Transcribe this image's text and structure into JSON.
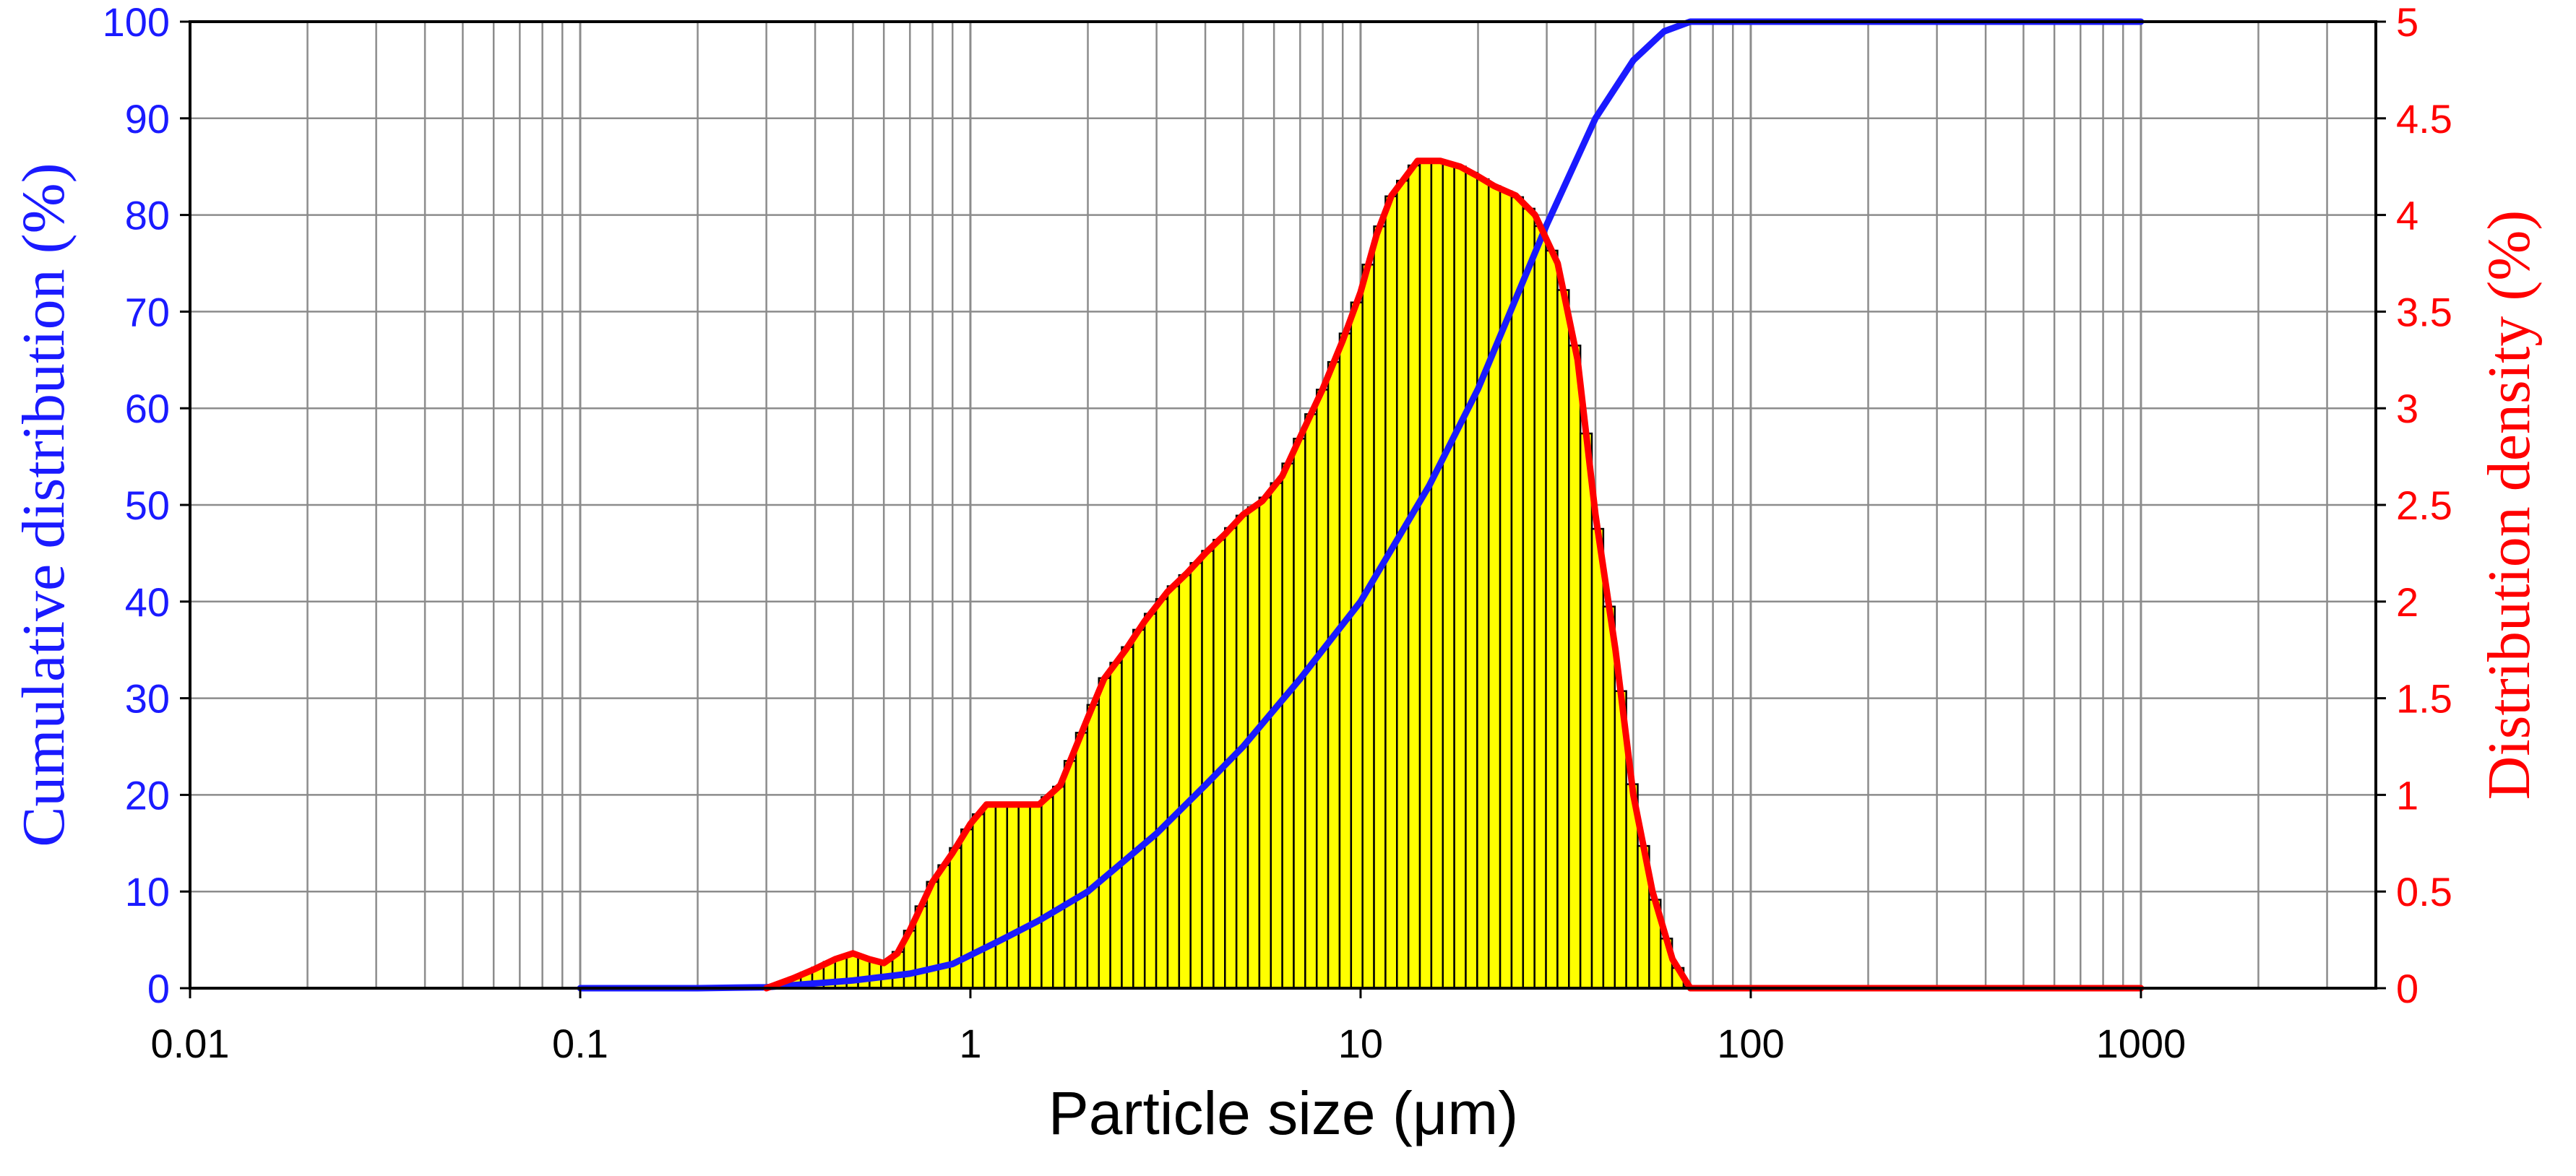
{
  "chart_data": {
    "type": "bar",
    "title": "",
    "xlabel": "Particle size (μm)",
    "xscale": "log",
    "xlim": [
      0.01,
      4000
    ],
    "xticks": [
      0.01,
      0.1,
      1,
      10,
      100,
      1000
    ],
    "xtick_labels": [
      "0.01",
      "0.1",
      "1",
      "10",
      "100",
      "1000"
    ],
    "y_left": {
      "label": "Cumulative distribution (%)",
      "ylim": [
        0,
        100
      ],
      "ticks": [
        0,
        10,
        20,
        30,
        40,
        50,
        60,
        70,
        80,
        90,
        100
      ],
      "tick_labels": [
        "0",
        "10",
        "20",
        "30",
        "40",
        "50",
        "60",
        "70",
        "80",
        "90",
        "100"
      ],
      "color": "#1a1aff"
    },
    "y_right": {
      "label": "Distribution density (%)",
      "ylim": [
        0,
        5
      ],
      "ticks": [
        0,
        0.5,
        1,
        1.5,
        2,
        2.5,
        3,
        3.5,
        4,
        4.5,
        5
      ],
      "tick_labels": [
        "0",
        "0.5",
        "1",
        "1.5",
        "2",
        "2.5",
        "3",
        "3.5",
        "4",
        "4.5",
        "5"
      ],
      "color": "#ff0000"
    },
    "grid": true,
    "series": [
      {
        "name": "Cumulative distribution",
        "type": "line",
        "axis": "left",
        "color": "#1a1aff",
        "x": [
          0.1,
          0.2,
          0.3,
          0.5,
          0.7,
          0.9,
          1.2,
          1.5,
          2,
          3,
          4,
          5,
          7,
          10,
          15,
          20,
          30,
          40,
          50,
          60,
          70,
          100,
          1000
        ],
        "y": [
          0,
          0,
          0.1,
          0.8,
          1.5,
          2.5,
          5,
          7,
          10,
          16,
          21,
          25,
          32,
          40,
          52,
          62,
          79,
          90,
          96,
          99,
          100,
          100,
          100
        ]
      },
      {
        "name": "Distribution density",
        "type": "line",
        "axis": "right",
        "color": "#ff0000",
        "x": [
          0.3,
          0.35,
          0.4,
          0.45,
          0.5,
          0.55,
          0.6,
          0.65,
          0.7,
          0.8,
          0.9,
          1.0,
          1.1,
          1.2,
          1.3,
          1.5,
          1.7,
          2.0,
          2.2,
          2.5,
          2.8,
          3.2,
          3.6,
          4,
          4.5,
          5,
          5.6,
          6.3,
          7,
          8,
          9,
          10,
          11,
          12,
          14,
          16,
          18,
          20,
          22,
          25,
          28,
          32,
          36,
          40,
          45,
          50,
          56,
          63,
          70,
          75,
          100,
          1000
        ],
        "y": [
          0,
          0.05,
          0.1,
          0.15,
          0.18,
          0.15,
          0.13,
          0.18,
          0.3,
          0.55,
          0.7,
          0.85,
          0.95,
          0.95,
          0.95,
          0.95,
          1.05,
          1.4,
          1.6,
          1.75,
          1.9,
          2.05,
          2.15,
          2.25,
          2.35,
          2.45,
          2.52,
          2.65,
          2.85,
          3.1,
          3.35,
          3.6,
          3.9,
          4.1,
          4.28,
          4.28,
          4.25,
          4.2,
          4.15,
          4.1,
          4.0,
          3.75,
          3.25,
          2.45,
          1.75,
          1.0,
          0.5,
          0.15,
          0,
          0,
          0,
          0
        ]
      },
      {
        "name": "Density histogram",
        "type": "bar",
        "axis": "right",
        "color": "#ffff00",
        "edgecolor": "#000000",
        "bin_start": 0.3,
        "bin_ratio": 1.07,
        "bin_end": 75
      }
    ]
  }
}
